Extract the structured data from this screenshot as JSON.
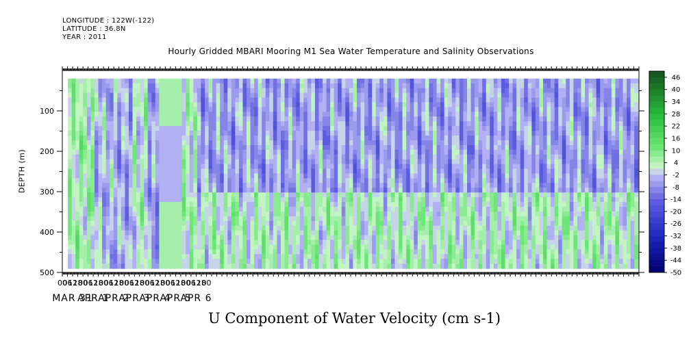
{
  "header": {
    "longitude": "LONGITUDE : 122W(-122)",
    "latitude": "LATITUDE : 36.8N",
    "year": "YEAR : 2011"
  },
  "title": "Hourly Gridded MBARI Mooring M1 Sea Water Temperature and Salinity Observations",
  "bottom_title": "U Component of Water Velocity (cm s-1)",
  "colors": {
    "positive_strong": "#1f6a2a",
    "positive": "#2bc43f",
    "positive_light": "#a9f0a9",
    "negative_light": "#b6b6f4",
    "negative": "#5c5cdf",
    "negative_strong": "#00006e"
  },
  "chart_data": {
    "type": "heatmap",
    "title": "Hourly Gridded MBARI Mooring M1 Sea Water Temperature and Salinity Observations",
    "xlabel": "",
    "ylabel": "DEPTH (m)",
    "y_ticks": [
      100,
      200,
      300,
      400,
      500
    ],
    "ylim": [
      500,
      0
    ],
    "x_hour_labels": [
      "00",
      "06",
      "12",
      "18",
      "00",
      "06",
      "12",
      "18",
      "00",
      "06",
      "12",
      "18",
      "00",
      "06",
      "12",
      "18",
      "00",
      "06",
      "12",
      "18",
      "00",
      "06",
      "12",
      "18",
      "00",
      "06",
      "12",
      "18",
      "00"
    ],
    "x_day_labels": [
      "MAR 31",
      "APR 1",
      "APR 2",
      "APR 3",
      "APR 4",
      "APR 5",
      "APR 6"
    ],
    "colorbar": {
      "ticks": [
        46,
        40,
        34,
        28,
        22,
        16,
        10,
        4,
        -2,
        -8,
        -14,
        -20,
        -26,
        -32,
        -38,
        -44,
        -50
      ],
      "min": -50,
      "max": 49,
      "step": 3
    },
    "depth_range": [
      20,
      490
    ],
    "z_label": "U Component of Water Velocity (cm s-1)"
  }
}
